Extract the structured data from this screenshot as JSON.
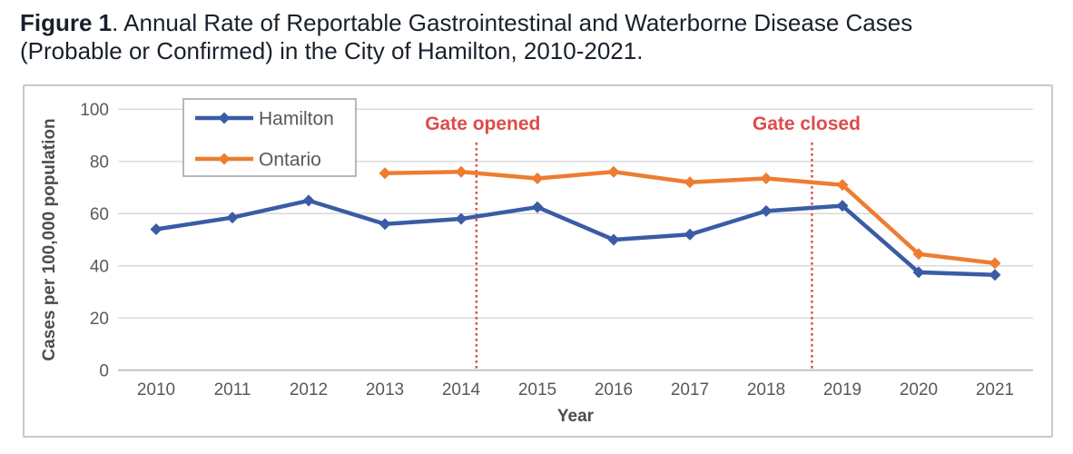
{
  "figure_title": {
    "prefix": "Figure 1",
    "rest": ". Annual Rate of Reportable Gastrointestinal and Waterborne Disease Cases (Probable or Confirmed) in the City of Hamilton, 2010-2021."
  },
  "chart_data": {
    "type": "line",
    "title": "",
    "xlabel": "Year",
    "ylabel": "Cases per 100,000 population",
    "ylim": [
      0,
      100
    ],
    "yticks": [
      0,
      20,
      40,
      60,
      80,
      100
    ],
    "grid": true,
    "legend_position": "top-left-inside",
    "categories": [
      "2010",
      "2011",
      "2012",
      "2013",
      "2014",
      "2015",
      "2016",
      "2017",
      "2018",
      "2019",
      "2020",
      "2021"
    ],
    "series": [
      {
        "name": "Hamilton",
        "color": "#3A5CA5",
        "marker": "diamond",
        "values": [
          54,
          58.5,
          65,
          56,
          58,
          62.5,
          50,
          52,
          61,
          63,
          37.5,
          36.5
        ]
      },
      {
        "name": "Ontario",
        "color": "#ED7D31",
        "marker": "diamond",
        "values": [
          null,
          null,
          null,
          75.5,
          76,
          73.5,
          76,
          72,
          73.5,
          71,
          44.5,
          41
        ]
      }
    ],
    "annotations": [
      {
        "label": "Gate opened",
        "x_year": 2014.2,
        "color": "#DE4B4B",
        "style": "dotted-vertical"
      },
      {
        "label": "Gate closed",
        "x_year": 2018.6,
        "color": "#DE4B4B",
        "style": "dotted-vertical"
      }
    ],
    "colors": {
      "gridline": "#D9D9D9",
      "baseline": "#C0C0C0",
      "axis_text": "#595959",
      "axis_title_text": "#4D4D4D",
      "legend_border": "#A6A6A6",
      "annotation_red": "#DE4B4B"
    }
  }
}
